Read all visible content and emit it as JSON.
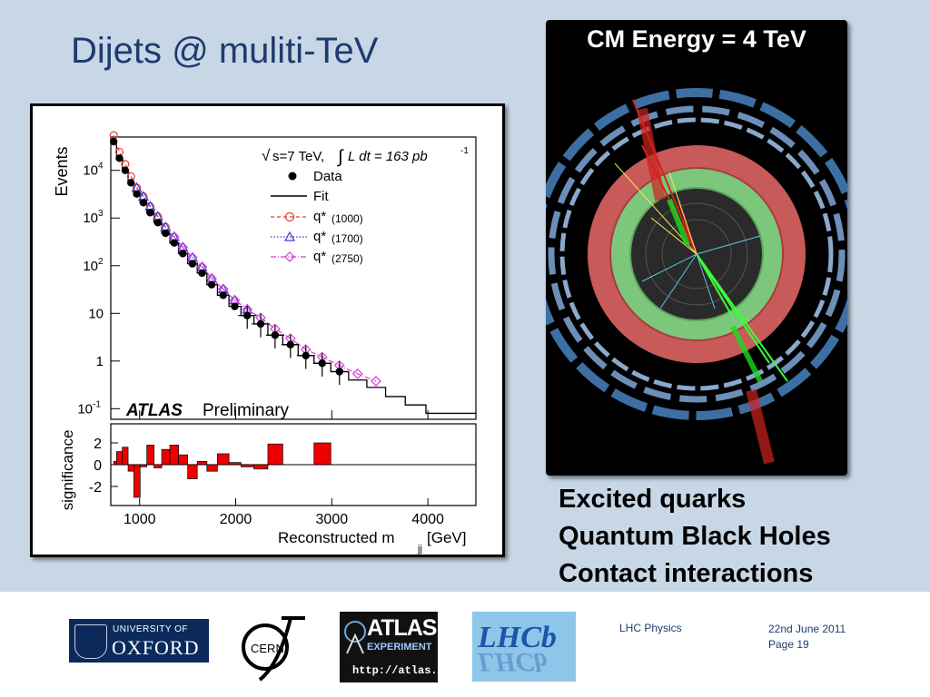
{
  "slide": {
    "title": "Dijets @ muliti-TeV",
    "event_display_title": "CM Energy = 4 TeV",
    "topics": [
      "Excited quarks",
      "Quantum Black Holes",
      "Contact interactions"
    ]
  },
  "footer": {
    "oxford_line1": "UNIVERSITY OF",
    "oxford_line2": "OXFORD",
    "cern_text": "CERN",
    "atlas_line1": "ATLAS",
    "atlas_line2": "EXPERIMENT",
    "atlas_url": "http://atlas.ch",
    "lhcb_text": "LHCb",
    "course": "LHC Physics",
    "date": "22nd June 2011",
    "page": "Page 19"
  },
  "colors": {
    "title_text": "#1f3b6f",
    "background": "#c7d7e6",
    "fit_line": "#000000",
    "q1000": "#e8413a",
    "q1700": "#3a3ad8",
    "q2750": "#d63ad6",
    "significance_fill": "#ee0000"
  },
  "chart_data": [
    {
      "type": "scatter",
      "ylabel": "Events",
      "xlabel": "Reconstructed m",
      "xlabel_sub": "jj",
      "xlabel_unit": " [GeV]",
      "xlim": [
        700,
        4500
      ],
      "ylim": [
        0.06,
        50000
      ],
      "yscale": "log",
      "y_ticks": [
        {
          "value": 10000,
          "mant": "10",
          "exp": "4"
        },
        {
          "value": 1000,
          "mant": "10",
          "exp": "3"
        },
        {
          "value": 100,
          "mant": "10",
          "exp": "2"
        },
        {
          "value": 10,
          "mant": "10",
          "exp": ""
        },
        {
          "value": 1,
          "mant": "1",
          "exp": ""
        },
        {
          "value": 0.1,
          "mant": "10",
          "exp": "-1"
        }
      ],
      "annotation_lumi": "s=7 TeV,",
      "annotation_lumi_int": "L dt = 163 pb",
      "annotation_lumi_exp": "-1",
      "atlas_label": "ATLAS",
      "atlas_sub": "Preliminary",
      "legend": {
        "position": "top-right",
        "data": "Data",
        "fit": "Fit",
        "q1": "q*",
        "q1_mass": "(1000)",
        "q2": "q*",
        "q2_mass": "(1700)",
        "q3": "q*",
        "q3_mass": "(2750)"
      },
      "data": {
        "x": [
          730,
          790,
          850,
          910,
          970,
          1040,
          1110,
          1190,
          1270,
          1360,
          1450,
          1550,
          1650,
          1750,
          1870,
          1990,
          2120,
          2260,
          2410,
          2570,
          2730,
          2900,
          3080,
          3270,
          3460,
          3660,
          3870,
          4090
        ],
        "y": [
          40000,
          18000,
          10000,
          5500,
          3200,
          2100,
          1300,
          800,
          480,
          300,
          180,
          110,
          70,
          40,
          24,
          14,
          9,
          6,
          3.5,
          2.2,
          1.3,
          0.9,
          0.6,
          0.4,
          0.28,
          0.18,
          0.12,
          0.08
        ],
        "fit_y": [
          38000,
          18000,
          10000,
          5500,
          3200,
          2100,
          1300,
          800,
          480,
          300,
          180,
          110,
          70,
          40,
          24,
          14,
          9,
          6,
          3.5,
          2.2,
          1.3,
          0.9,
          0.6,
          0.4,
          0.28,
          0.18,
          0.12,
          0.08
        ]
      }
    }
  ]
}
